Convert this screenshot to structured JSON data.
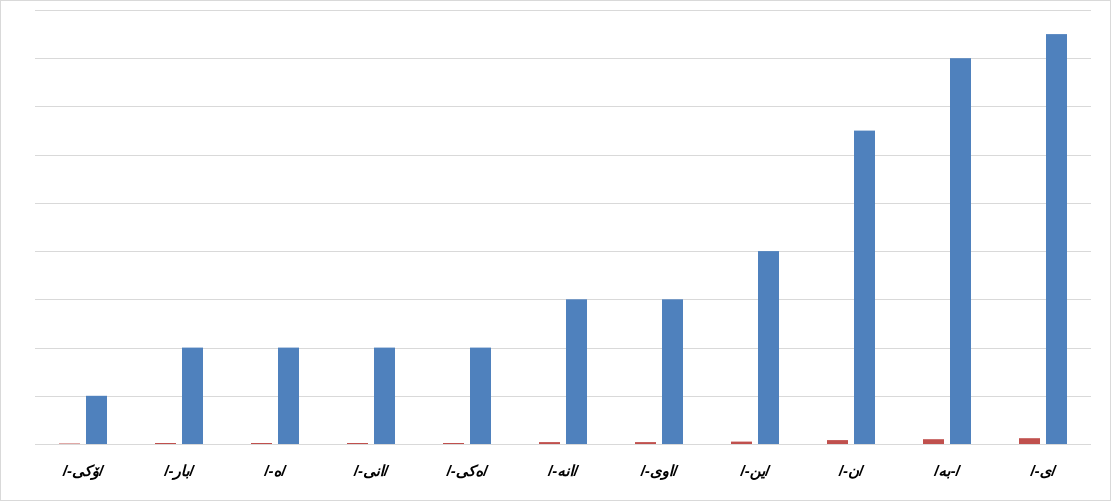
{
  "chart_data": {
    "type": "bar",
    "title": "",
    "xlabel": "",
    "ylabel": "",
    "categories": [
      "/-ۆکی/",
      "/-بار/",
      "/-ه/",
      "/-انی/",
      "/-ەکی/",
      "/-انه/",
      "/-اوی/",
      "/-ین/",
      "/-ن/",
      "/به-/",
      "/-ی/"
    ],
    "ylim": [
      0,
      9
    ],
    "y_grid_step": 1,
    "grid": true,
    "y_tick_labels_visible": false,
    "legend": "none",
    "series": [
      {
        "values": [
          0.01,
          0.02,
          0.02,
          0.02,
          0.02,
          0.04,
          0.04,
          0.05,
          0.08,
          0.1,
          0.12
        ],
        "color": "#c0504d"
      },
      {
        "values": [
          1,
          2,
          2,
          2,
          2,
          3,
          3,
          4,
          6.5,
          8,
          8.5
        ],
        "color": "#4f81bd"
      }
    ]
  }
}
